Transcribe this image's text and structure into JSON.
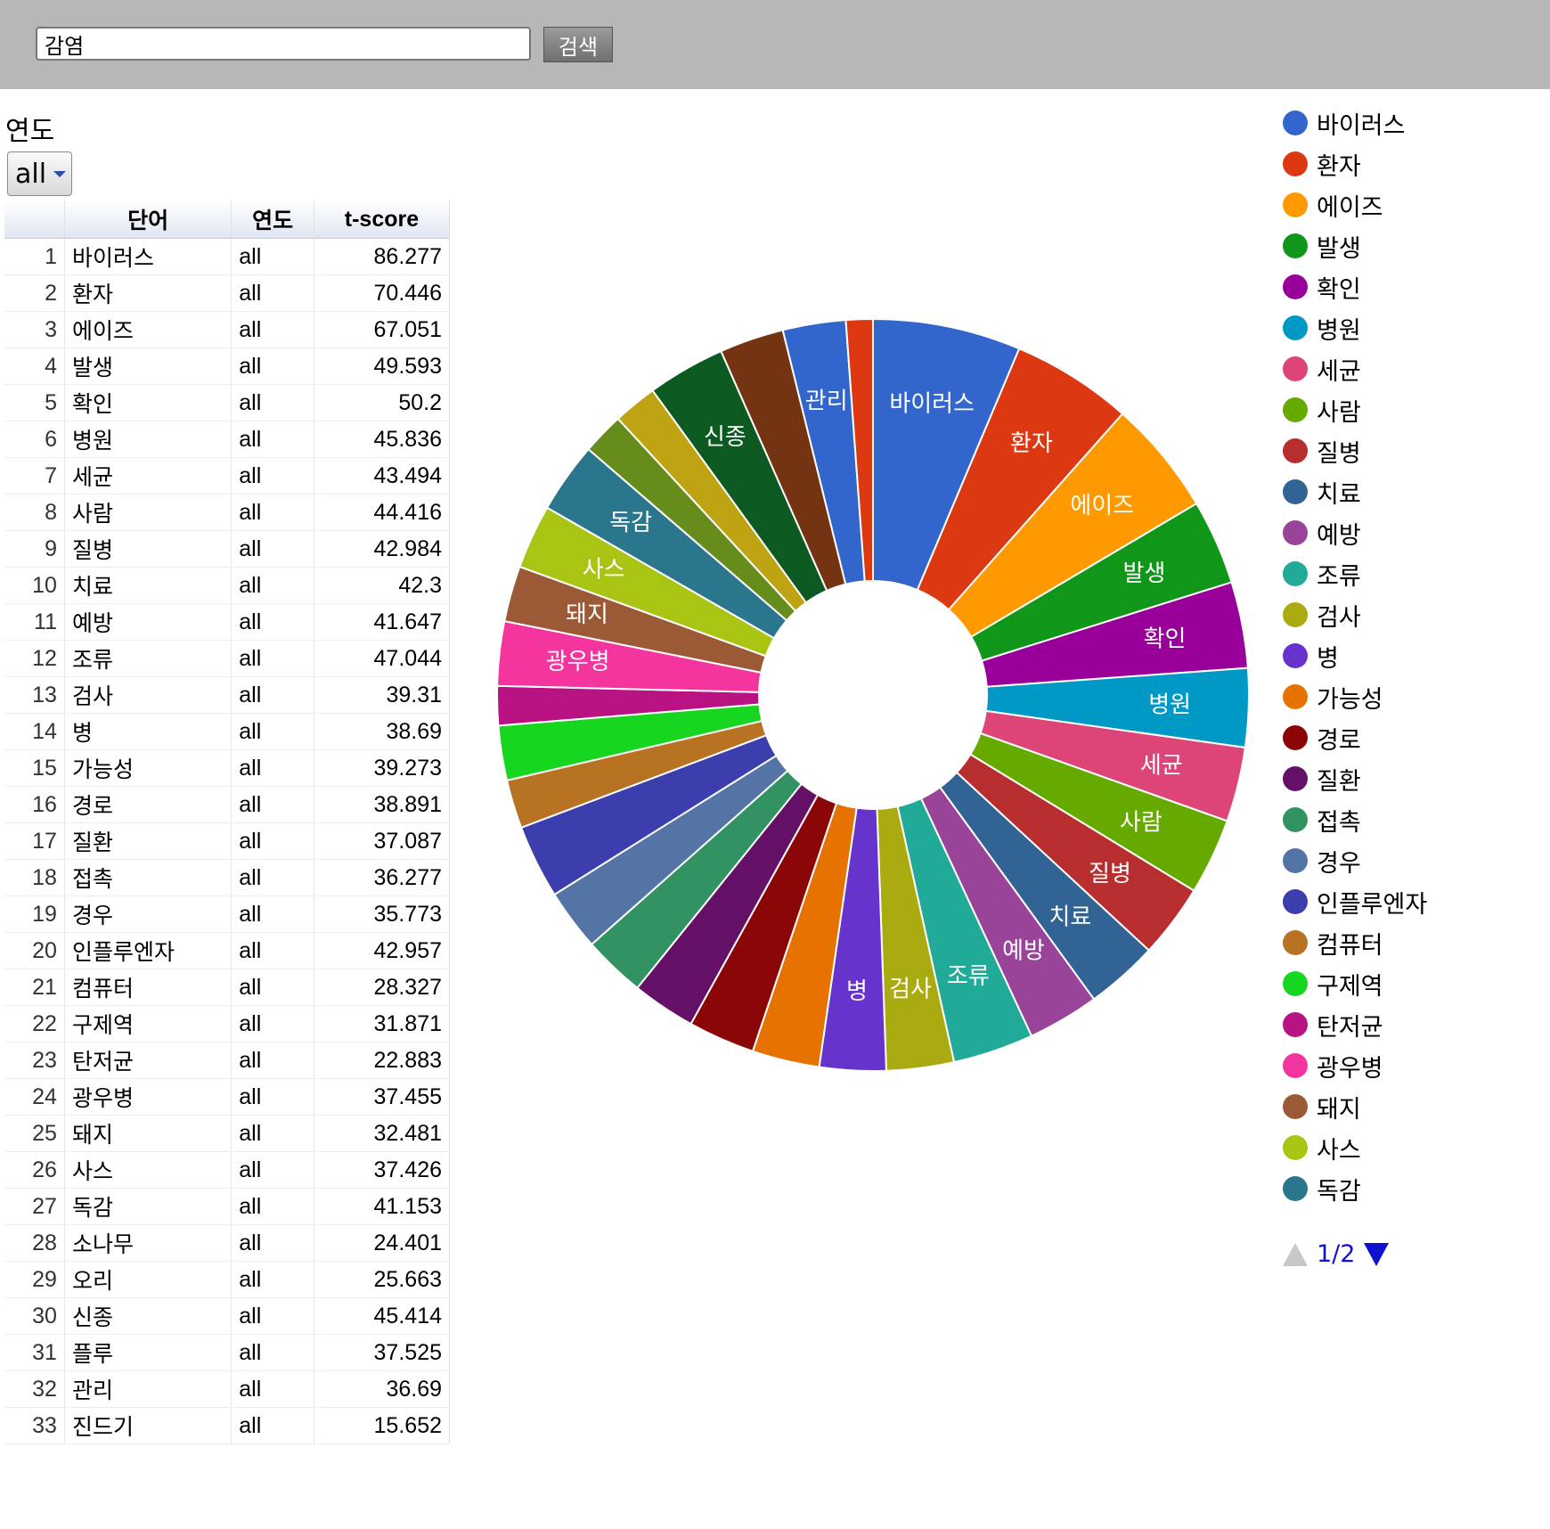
{
  "search": {
    "value": "감염",
    "button_label": "검색"
  },
  "filter": {
    "label": "연도",
    "selected": "all"
  },
  "table": {
    "headers": [
      "",
      "단어",
      "연도",
      "t-score"
    ],
    "rows": [
      [
        "1",
        "바이러스",
        "all",
        "86.277"
      ],
      [
        "2",
        "환자",
        "all",
        "70.446"
      ],
      [
        "3",
        "에이즈",
        "all",
        "67.051"
      ],
      [
        "4",
        "발생",
        "all",
        "49.593"
      ],
      [
        "5",
        "확인",
        "all",
        "50.2"
      ],
      [
        "6",
        "병원",
        "all",
        "45.836"
      ],
      [
        "7",
        "세균",
        "all",
        "43.494"
      ],
      [
        "8",
        "사람",
        "all",
        "44.416"
      ],
      [
        "9",
        "질병",
        "all",
        "42.984"
      ],
      [
        "10",
        "치료",
        "all",
        "42.3"
      ],
      [
        "11",
        "예방",
        "all",
        "41.647"
      ],
      [
        "12",
        "조류",
        "all",
        "47.044"
      ],
      [
        "13",
        "검사",
        "all",
        "39.31"
      ],
      [
        "14",
        "병",
        "all",
        "38.69"
      ],
      [
        "15",
        "가능성",
        "all",
        "39.273"
      ],
      [
        "16",
        "경로",
        "all",
        "38.891"
      ],
      [
        "17",
        "질환",
        "all",
        "37.087"
      ],
      [
        "18",
        "접촉",
        "all",
        "36.277"
      ],
      [
        "19",
        "경우",
        "all",
        "35.773"
      ],
      [
        "20",
        "인플루엔자",
        "all",
        "42.957"
      ],
      [
        "21",
        "컴퓨터",
        "all",
        "28.327"
      ],
      [
        "22",
        "구제역",
        "all",
        "31.871"
      ],
      [
        "23",
        "탄저균",
        "all",
        "22.883"
      ],
      [
        "24",
        "광우병",
        "all",
        "37.455"
      ],
      [
        "25",
        "돼지",
        "all",
        "32.481"
      ],
      [
        "26",
        "사스",
        "all",
        "37.426"
      ],
      [
        "27",
        "독감",
        "all",
        "41.153"
      ],
      [
        "28",
        "소나무",
        "all",
        "24.401"
      ],
      [
        "29",
        "오리",
        "all",
        "25.663"
      ],
      [
        "30",
        "신종",
        "all",
        "45.414"
      ],
      [
        "31",
        "플루",
        "all",
        "37.525"
      ],
      [
        "32",
        "관리",
        "all",
        "36.69"
      ],
      [
        "33",
        "진드기",
        "all",
        "15.652"
      ]
    ]
  },
  "chart_data": {
    "type": "pie",
    "donut": true,
    "categories": [
      "바이러스",
      "환자",
      "에이즈",
      "발생",
      "확인",
      "병원",
      "세균",
      "사람",
      "질병",
      "치료",
      "예방",
      "조류",
      "검사",
      "병",
      "가능성",
      "경로",
      "질환",
      "접촉",
      "경우",
      "인플루엔자",
      "컴퓨터",
      "구제역",
      "탄저균",
      "광우병",
      "돼지",
      "사스",
      "독감",
      "소나무",
      "오리",
      "신종",
      "플루",
      "관리",
      "진드기"
    ],
    "values": [
      86.277,
      70.446,
      67.051,
      49.593,
      50.2,
      45.836,
      43.494,
      44.416,
      42.984,
      42.3,
      41.647,
      47.044,
      39.31,
      38.69,
      39.273,
      38.891,
      37.087,
      36.277,
      35.773,
      42.957,
      28.327,
      31.871,
      22.883,
      37.455,
      32.481,
      37.426,
      41.153,
      24.401,
      25.663,
      45.414,
      37.525,
      36.69,
      15.652
    ],
    "colors": [
      "#3366cc",
      "#dc3912",
      "#ff9900",
      "#109618",
      "#990099",
      "#0099c6",
      "#dd4477",
      "#66aa00",
      "#b82e2e",
      "#316395",
      "#994499",
      "#22aa99",
      "#aaaa11",
      "#6633cc",
      "#e67300",
      "#8b0707",
      "#651067",
      "#329262",
      "#5574a6",
      "#3b3eac",
      "#b77322",
      "#16d620",
      "#b91383",
      "#f4359e",
      "#9c5935",
      "#a9c413",
      "#2a778d",
      "#668d1c",
      "#bea413",
      "#0c5922",
      "#743411",
      "#3366cc",
      "#dc3912"
    ],
    "slice_labels": [
      "바이러스",
      "환자",
      "에이즈",
      "발생",
      "확인",
      "병원",
      "세균",
      "사람",
      "질병",
      "치료",
      "예방",
      "조류",
      "검사",
      "병",
      "",
      "",
      "",
      "",
      "",
      "",
      "",
      "",
      "",
      "광우병",
      "돼지",
      "사스",
      "독감",
      "",
      "",
      "신종",
      "",
      "관리",
      ""
    ],
    "legend": {
      "position": "right",
      "items": [
        "바이러스",
        "환자",
        "에이즈",
        "발생",
        "확인",
        "병원",
        "세균",
        "사람",
        "질병",
        "치료",
        "예방",
        "조류",
        "검사",
        "병",
        "가능성",
        "경로",
        "질환",
        "접촉",
        "경우",
        "인플루엔자",
        "컴퓨터",
        "구제역",
        "탄저균",
        "광우병",
        "돼지",
        "사스",
        "독감"
      ],
      "page": "1/2"
    }
  }
}
